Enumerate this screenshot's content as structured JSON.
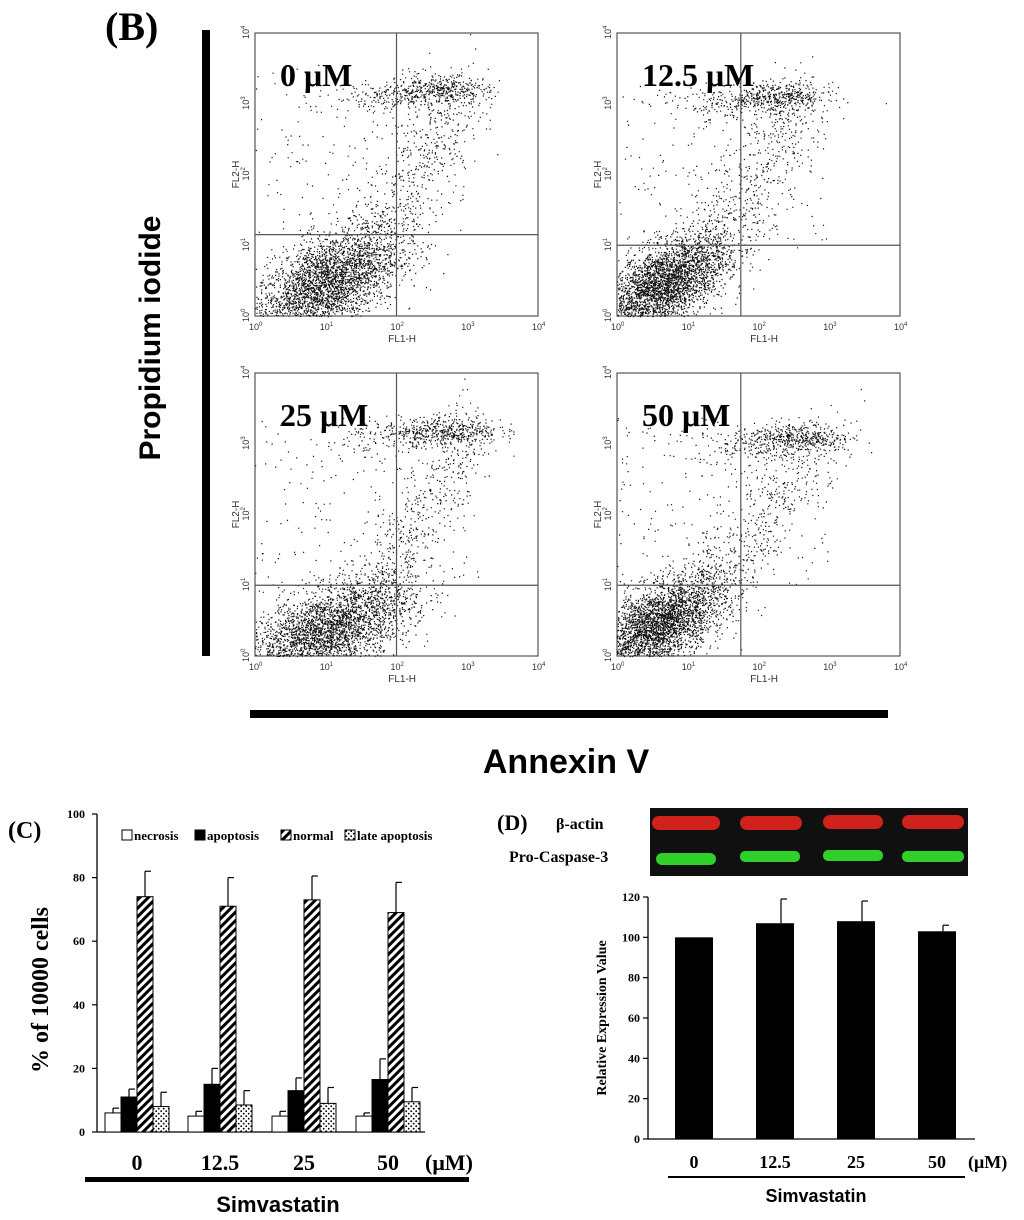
{
  "panel_labels": {
    "b": "(B)",
    "c": "(C)",
    "d": "(D)"
  },
  "flow_cytometry": {
    "y_axis_title": "Propidium iodide",
    "x_axis_title": "Annexin V",
    "axis_x_label": "FL1-H",
    "axis_y_label": "FL2-H",
    "ticks": [
      {
        "base": "10",
        "exp": "0"
      },
      {
        "base": "10",
        "exp": "1"
      },
      {
        "base": "10",
        "exp": "2"
      },
      {
        "base": "10",
        "exp": "3"
      },
      {
        "base": "10",
        "exp": "4"
      }
    ],
    "plots": [
      {
        "label": "0 μM",
        "gate_x": 2.0,
        "gate_y": 1.15,
        "center": [
          1.0,
          0.45
        ],
        "spread": [
          0.52,
          0.42
        ],
        "count": 3200,
        "late": [
          2.6,
          3.2
        ],
        "minus": 0.0
      },
      {
        "label": "12.5 μM",
        "gate_x": 1.75,
        "gate_y": 1.0,
        "center": [
          0.65,
          0.45
        ],
        "spread": [
          0.45,
          0.35
        ],
        "count": 3200,
        "late": [
          2.3,
          3.1
        ],
        "minus": 0.0
      },
      {
        "label": "25 μM",
        "gate_x": 2.0,
        "gate_y": 1.0,
        "center": [
          1.0,
          0.35
        ],
        "spread": [
          0.6,
          0.38
        ],
        "count": 3200,
        "late": [
          2.75,
          3.2
        ],
        "minus": 0.0
      },
      {
        "label": "50 μM",
        "gate_x": 1.75,
        "gate_y": 1.0,
        "center": [
          0.6,
          0.45
        ],
        "spread": [
          0.45,
          0.35
        ],
        "count": 3200,
        "late": [
          2.6,
          3.1
        ],
        "minus": 0.0
      }
    ]
  },
  "chart_data": [
    {
      "type": "bar",
      "panel": "C",
      "categories": [
        "0",
        "12.5",
        "25",
        "50"
      ],
      "unit_label": "(μM)",
      "xlabel": "Simvastatin",
      "ylabel": "% of 10000 cells",
      "ylim": [
        0,
        100
      ],
      "yticks": [
        "0",
        "20",
        "40",
        "60",
        "80",
        "100"
      ],
      "series": [
        {
          "name": "necrosis",
          "pattern": "white",
          "values": [
            6,
            5,
            5,
            5
          ],
          "errors": [
            1.5,
            1.5,
            1.5,
            1
          ]
        },
        {
          "name": "apoptosis",
          "pattern": "black",
          "values": [
            11,
            15,
            13,
            16.5
          ],
          "errors": [
            2.5,
            5,
            4,
            6.5
          ]
        },
        {
          "name": "normal",
          "pattern": "hatch",
          "values": [
            74,
            71,
            73,
            69
          ],
          "errors": [
            8,
            9,
            7.5,
            9.5
          ]
        },
        {
          "name": "late apoptosis",
          "pattern": "dots",
          "values": [
            8,
            8.5,
            9,
            9.5
          ],
          "errors": [
            4.5,
            4.5,
            5,
            4.5
          ]
        }
      ]
    },
    {
      "type": "bar",
      "panel": "D",
      "categories": [
        "0",
        "12.5",
        "25",
        "50"
      ],
      "unit_label": "(μM)",
      "xlabel": "Simvastatin",
      "ylabel": "Relative Expression Value",
      "ylim": [
        0,
        120
      ],
      "yticks": [
        "0",
        "20",
        "40",
        "60",
        "80",
        "100",
        "120"
      ],
      "values": [
        100,
        107,
        108,
        103
      ],
      "errors": [
        0,
        12,
        10,
        3
      ]
    }
  ],
  "blot": {
    "row_labels": [
      "β-actin",
      "Pro-Caspase-3"
    ],
    "colors": {
      "actin": "#d0221b",
      "caspase": "#2fd02a",
      "background": "#101010"
    }
  }
}
